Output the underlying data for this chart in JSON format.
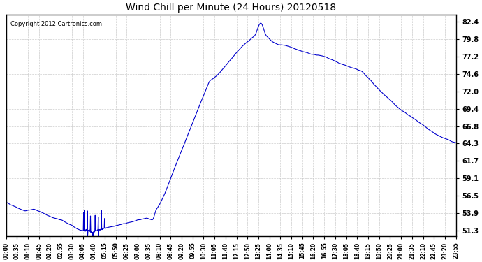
{
  "title": "Wind Chill per Minute (24 Hours) 20120518",
  "copyright_text": "Copyright 2012 Cartronics.com",
  "line_color": "#0000CC",
  "background_color": "#ffffff",
  "plot_bg_color": "#ffffff",
  "grid_color": "#cccccc",
  "ylabel_right": true,
  "yticks": [
    51.3,
    53.9,
    56.5,
    59.1,
    61.7,
    64.3,
    66.8,
    69.4,
    72.0,
    74.6,
    77.2,
    79.8,
    82.4
  ],
  "ylim": [
    50.5,
    83.5
  ],
  "xtick_labels": [
    "00:00",
    "00:35",
    "01:10",
    "01:45",
    "02:20",
    "02:55",
    "03:30",
    "04:05",
    "04:40",
    "05:15",
    "05:50",
    "06:25",
    "07:00",
    "07:35",
    "08:10",
    "08:45",
    "09:20",
    "09:55",
    "10:30",
    "11:05",
    "11:40",
    "12:15",
    "12:50",
    "13:25",
    "14:00",
    "14:35",
    "15:10",
    "15:45",
    "16:20",
    "16:55",
    "17:30",
    "18:05",
    "18:40",
    "19:15",
    "19:50",
    "20:25",
    "21:00",
    "21:35",
    "22:10",
    "22:45",
    "23:20",
    "23:55"
  ]
}
